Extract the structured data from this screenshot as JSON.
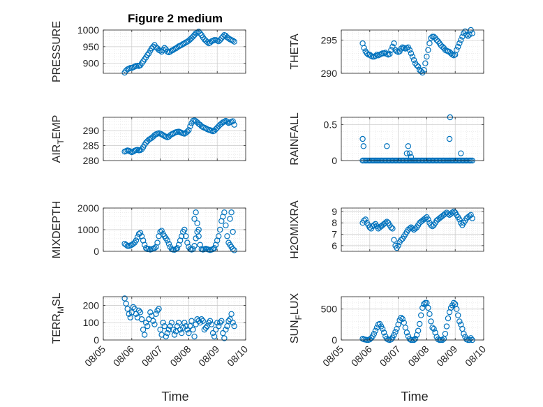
{
  "title": "Figure 2 medium",
  "xlabel": "Time",
  "x_tick_labels": [
    "08/05",
    "08/06",
    "08/07",
    "08/08",
    "08/09",
    "08/10"
  ],
  "x_tick_values": [
    0,
    1,
    2,
    3,
    4,
    5
  ],
  "marker_color": "#0072BD",
  "chart_data": [
    {
      "type": "scatter",
      "id": "pressure",
      "ylabel": "PRESSURE",
      "ylim": [
        870,
        1000
      ],
      "yticks": [
        900,
        950,
        1000
      ],
      "grid": true,
      "x": [
        0.75,
        0.8,
        0.85,
        0.9,
        0.95,
        1.0,
        1.05,
        1.1,
        1.15,
        1.2,
        1.25,
        1.3,
        1.35,
        1.4,
        1.45,
        1.5,
        1.55,
        1.6,
        1.65,
        1.7,
        1.75,
        1.8,
        1.85,
        1.9,
        1.95,
        2.0,
        2.05,
        2.1,
        2.15,
        2.2,
        2.25,
        2.3,
        2.35,
        2.4,
        2.45,
        2.5,
        2.55,
        2.6,
        2.65,
        2.7,
        2.75,
        2.8,
        2.85,
        2.9,
        2.95,
        3.0,
        3.05,
        3.1,
        3.15,
        3.2,
        3.25,
        3.3,
        3.35,
        3.4,
        3.45,
        3.5,
        3.55,
        3.6,
        3.65,
        3.7,
        3.75,
        3.8,
        3.85,
        3.9,
        3.95,
        4.0,
        4.05,
        4.1,
        4.15,
        4.2,
        4.25,
        4.3,
        4.35,
        4.4,
        4.45,
        4.5,
        4.55,
        4.6
      ],
      "y": [
        872,
        878,
        882,
        884,
        886,
        886,
        888,
        890,
        892,
        893,
        892,
        894,
        900,
        906,
        912,
        918,
        925,
        930,
        938,
        945,
        950,
        955,
        948,
        945,
        940,
        938,
        935,
        940,
        946,
        942,
        935,
        933,
        935,
        938,
        940,
        943,
        945,
        948,
        951,
        953,
        955,
        958,
        960,
        963,
        965,
        968,
        972,
        976,
        980,
        985,
        990,
        992,
        995,
        990,
        985,
        978,
        972,
        968,
        964,
        960,
        962,
        966,
        968,
        970,
        970,
        968,
        966,
        970,
        975,
        980,
        985,
        983,
        978,
        975,
        972,
        970,
        968,
        965
      ]
    },
    {
      "type": "scatter",
      "id": "theta",
      "ylabel": "THETA",
      "ylim": [
        290,
        296.5
      ],
      "yticks": [
        290,
        295
      ],
      "grid": true,
      "x": [
        0.75,
        0.8,
        0.85,
        0.9,
        0.95,
        1.0,
        1.05,
        1.1,
        1.15,
        1.2,
        1.25,
        1.3,
        1.35,
        1.4,
        1.45,
        1.5,
        1.55,
        1.6,
        1.65,
        1.7,
        1.75,
        1.8,
        1.85,
        1.9,
        1.95,
        2.0,
        2.05,
        2.1,
        2.15,
        2.2,
        2.25,
        2.3,
        2.35,
        2.4,
        2.45,
        2.5,
        2.55,
        2.6,
        2.65,
        2.7,
        2.75,
        2.8,
        2.85,
        2.9,
        2.95,
        3.0,
        3.05,
        3.1,
        3.15,
        3.2,
        3.25,
        3.3,
        3.35,
        3.4,
        3.45,
        3.5,
        3.55,
        3.6,
        3.65,
        3.7,
        3.75,
        3.8,
        3.85,
        3.9,
        3.95,
        4.0,
        4.05,
        4.1,
        4.15,
        4.2,
        4.25,
        4.3,
        4.35,
        4.4,
        4.45,
        4.5,
        4.55,
        4.6
      ],
      "y": [
        294.5,
        293.8,
        293.3,
        293.0,
        292.8,
        292.8,
        292.6,
        292.5,
        292.5,
        292.6,
        292.8,
        292.7,
        292.8,
        292.9,
        293.0,
        293.0,
        293.1,
        292.9,
        292.8,
        292.9,
        293.5,
        294.0,
        294.5,
        293.5,
        293.3,
        293.2,
        293.3,
        293.7,
        293.9,
        293.8,
        293.7,
        293.8,
        293.9,
        293.5,
        293.0,
        292.5,
        292.0,
        291.5,
        291.2,
        291.0,
        290.5,
        290.3,
        290.1,
        290.5,
        291.5,
        292.5,
        293.5,
        294.5,
        295.3,
        295.5,
        295.5,
        295.3,
        295.0,
        294.8,
        294.5,
        294.2,
        294.0,
        293.8,
        293.5,
        293.4,
        293.3,
        293.2,
        293.0,
        292.8,
        292.7,
        292.8,
        293.5,
        294.0,
        294.5,
        295.0,
        295.5,
        296.0,
        296.3,
        295.8,
        295.6,
        295.8,
        296.5,
        296.0
      ]
    },
    {
      "type": "scatter",
      "id": "air_temp",
      "ylabel_main": "AIR",
      "ylabel_sub": "T",
      "ylabel_rest": "EMP",
      "ylim": [
        280,
        294.5
      ],
      "yticks": [
        280,
        285,
        290
      ],
      "grid": true,
      "x": [
        0.75,
        0.8,
        0.85,
        0.9,
        0.95,
        1.0,
        1.05,
        1.1,
        1.15,
        1.2,
        1.25,
        1.3,
        1.35,
        1.4,
        1.45,
        1.5,
        1.55,
        1.6,
        1.65,
        1.7,
        1.75,
        1.8,
        1.85,
        1.9,
        1.95,
        2.0,
        2.05,
        2.1,
        2.15,
        2.2,
        2.25,
        2.3,
        2.35,
        2.4,
        2.45,
        2.5,
        2.55,
        2.6,
        2.65,
        2.7,
        2.75,
        2.8,
        2.85,
        2.9,
        2.95,
        3.0,
        3.05,
        3.1,
        3.15,
        3.2,
        3.25,
        3.3,
        3.35,
        3.4,
        3.45,
        3.5,
        3.55,
        3.6,
        3.65,
        3.7,
        3.75,
        3.8,
        3.85,
        3.9,
        3.95,
        4.0,
        4.05,
        4.1,
        4.15,
        4.2,
        4.25,
        4.3,
        4.35,
        4.4,
        4.45,
        4.5,
        4.55,
        4.6
      ],
      "y": [
        283.0,
        283.2,
        283.4,
        283.3,
        283.0,
        282.8,
        283.0,
        283.3,
        283.5,
        283.6,
        283.4,
        283.5,
        283.8,
        284.5,
        285.3,
        286.0,
        286.5,
        287.0,
        287.3,
        287.6,
        288.0,
        288.5,
        288.8,
        289.0,
        289.2,
        289.0,
        288.8,
        288.5,
        288.2,
        288.0,
        287.8,
        288.0,
        288.5,
        288.8,
        289.0,
        289.3,
        289.5,
        289.6,
        289.7,
        289.5,
        289.3,
        289.1,
        289.0,
        289.3,
        289.7,
        290.2,
        291.5,
        292.5,
        293.3,
        293.5,
        293.2,
        292.8,
        292.3,
        292.0,
        291.5,
        291.2,
        291.0,
        290.8,
        290.5,
        290.3,
        290.2,
        290.0,
        289.8,
        290.0,
        290.5,
        291.0,
        291.5,
        292.0,
        292.4,
        292.8,
        293.0,
        293.3,
        293.0,
        292.6,
        292.8,
        293.0,
        293.2,
        292.0
      ]
    },
    {
      "type": "scatter",
      "id": "rainfall",
      "ylabel": "RAINFALL",
      "ylim": [
        0,
        0.6
      ],
      "yticks": [
        0,
        0.5
      ],
      "grid": true,
      "x": [
        0.75,
        0.8,
        0.85,
        0.9,
        0.95,
        1.0,
        1.05,
        1.1,
        1.15,
        1.2,
        1.25,
        1.3,
        1.35,
        1.4,
        1.45,
        1.5,
        1.55,
        1.6,
        1.65,
        1.7,
        1.75,
        1.8,
        1.85,
        1.9,
        1.95,
        2.0,
        2.05,
        2.1,
        2.15,
        2.2,
        2.25,
        2.3,
        2.35,
        2.4,
        2.45,
        2.5,
        2.55,
        2.6,
        2.65,
        2.7,
        2.75,
        2.8,
        2.85,
        2.9,
        2.95,
        3.0,
        3.05,
        3.1,
        3.15,
        3.2,
        3.25,
        3.3,
        3.35,
        3.4,
        3.45,
        3.5,
        3.55,
        3.6,
        3.65,
        3.7,
        3.75,
        3.8,
        3.85,
        3.9,
        3.95,
        4.0,
        4.05,
        4.1,
        4.15,
        4.2,
        4.25,
        4.3,
        4.35,
        4.4,
        4.45,
        4.5,
        4.55,
        4.6,
        0.75,
        0.78,
        1.6,
        2.3,
        2.35,
        2.4,
        2.45,
        3.8,
        3.82,
        4.2
      ],
      "y": [
        0,
        0,
        0,
        0,
        0,
        0,
        0,
        0,
        0,
        0,
        0,
        0,
        0,
        0,
        0,
        0,
        0,
        0,
        0,
        0,
        0,
        0,
        0,
        0,
        0,
        0,
        0,
        0,
        0,
        0,
        0,
        0,
        0,
        0,
        0,
        0,
        0,
        0,
        0,
        0,
        0,
        0,
        0,
        0,
        0,
        0,
        0,
        0,
        0,
        0,
        0,
        0,
        0,
        0,
        0,
        0,
        0,
        0,
        0,
        0,
        0,
        0,
        0,
        0,
        0,
        0,
        0,
        0,
        0,
        0,
        0,
        0,
        0,
        0,
        0,
        0,
        0,
        0,
        0.3,
        0.2,
        0.2,
        0.1,
        0.2,
        0.1,
        0.05,
        0.3,
        0.6,
        0.1
      ]
    },
    {
      "type": "scatter",
      "id": "mixdepth",
      "ylabel": "MIXDEPTH",
      "ylim": [
        0,
        2000
      ],
      "yticks": [
        0,
        1000,
        2000
      ],
      "grid": true,
      "x": [
        0.75,
        0.8,
        0.85,
        0.9,
        0.95,
        1.0,
        1.05,
        1.1,
        1.15,
        1.2,
        1.25,
        1.3,
        1.35,
        1.4,
        1.45,
        1.5,
        1.55,
        1.6,
        1.65,
        1.7,
        1.75,
        1.8,
        1.85,
        1.9,
        1.95,
        2.0,
        2.05,
        2.1,
        2.15,
        2.2,
        2.25,
        2.3,
        2.35,
        2.4,
        2.45,
        2.5,
        2.55,
        2.6,
        2.65,
        2.7,
        2.75,
        2.8,
        2.85,
        2.9,
        2.95,
        3.0,
        3.05,
        3.1,
        3.15,
        3.2,
        3.25,
        3.3,
        3.35,
        3.4,
        3.45,
        3.5,
        3.55,
        3.6,
        3.65,
        3.7,
        3.75,
        3.8,
        3.85,
        3.9,
        3.95,
        4.0,
        4.05,
        4.1,
        4.15,
        4.2,
        4.25,
        4.3,
        4.35,
        4.4,
        4.45,
        4.5,
        4.55,
        4.6,
        3.2,
        3.25,
        3.3,
        3.35,
        4.45,
        4.5,
        4.55
      ],
      "y": [
        350,
        300,
        250,
        250,
        270,
        300,
        350,
        400,
        500,
        650,
        800,
        850,
        700,
        500,
        300,
        150,
        100,
        120,
        80,
        100,
        120,
        150,
        200,
        400,
        700,
        900,
        950,
        800,
        700,
        600,
        500,
        350,
        200,
        100,
        80,
        70,
        100,
        150,
        300,
        500,
        700,
        900,
        1000,
        700,
        400,
        200,
        100,
        80,
        100,
        250,
        600,
        900,
        700,
        300,
        100,
        80,
        100,
        120,
        100,
        80,
        60,
        80,
        100,
        150,
        300,
        500,
        700,
        1000,
        1400,
        1600,
        1800,
        1200,
        700,
        400,
        300,
        200,
        100,
        50,
        1500,
        1800,
        1300,
        1000,
        1500,
        1800,
        900
      ]
    },
    {
      "type": "scatter",
      "id": "h2omixra",
      "ylabel": "H2OMIXRA",
      "ylim": [
        5.5,
        9.3
      ],
      "yticks": [
        6,
        7,
        8,
        9
      ],
      "grid": true,
      "x": [
        0.75,
        0.8,
        0.85,
        0.9,
        0.95,
        1.0,
        1.05,
        1.1,
        1.15,
        1.2,
        1.25,
        1.3,
        1.35,
        1.4,
        1.45,
        1.5,
        1.55,
        1.6,
        1.65,
        1.7,
        1.75,
        1.8,
        1.85,
        1.9,
        1.95,
        2.0,
        2.05,
        2.1,
        2.15,
        2.2,
        2.25,
        2.3,
        2.35,
        2.4,
        2.45,
        2.5,
        2.55,
        2.6,
        2.65,
        2.7,
        2.75,
        2.8,
        2.85,
        2.9,
        2.95,
        3.0,
        3.05,
        3.1,
        3.15,
        3.2,
        3.25,
        3.3,
        3.35,
        3.4,
        3.45,
        3.5,
        3.55,
        3.6,
        3.65,
        3.7,
        3.75,
        3.8,
        3.85,
        3.9,
        3.95,
        4.0,
        4.05,
        4.1,
        4.15,
        4.2,
        4.25,
        4.3,
        4.35,
        4.4,
        4.45,
        4.5,
        4.55,
        4.6
      ],
      "y": [
        8.0,
        8.2,
        8.3,
        8.0,
        7.8,
        7.6,
        7.5,
        7.7,
        7.8,
        7.9,
        7.7,
        7.5,
        7.6,
        7.7,
        7.8,
        7.9,
        8.0,
        8.1,
        8.0,
        7.8,
        7.6,
        7.5,
        6.5,
        6.0,
        5.8,
        6.0,
        6.3,
        6.5,
        6.6,
        6.8,
        7.0,
        7.2,
        7.4,
        7.5,
        7.6,
        7.5,
        7.4,
        7.5,
        7.6,
        7.8,
        8.0,
        8.1,
        8.2,
        8.3,
        8.4,
        8.5,
        8.3,
        8.0,
        7.8,
        7.7,
        7.8,
        8.0,
        8.2,
        8.3,
        8.4,
        8.5,
        8.6,
        8.7,
        8.8,
        8.9,
        8.8,
        8.7,
        8.8,
        8.9,
        9.0,
        8.9,
        8.7,
        8.5,
        8.3,
        8.0,
        7.8,
        8.0,
        8.2,
        8.4,
        8.5,
        8.6,
        8.7,
        8.4
      ]
    },
    {
      "type": "scatter",
      "id": "terr_msl",
      "ylabel_main": "TERR",
      "ylabel_sub": "M",
      "ylabel_rest": "SL",
      "ylim": [
        0,
        250
      ],
      "yticks": [
        0,
        100,
        200
      ],
      "grid": true,
      "x": [
        0.75,
        0.8,
        0.85,
        0.9,
        0.95,
        1.0,
        1.05,
        1.1,
        1.15,
        1.2,
        1.25,
        1.3,
        1.35,
        1.4,
        1.45,
        1.5,
        1.55,
        1.6,
        1.65,
        1.7,
        1.75,
        1.8,
        1.85,
        1.9,
        1.95,
        2.0,
        2.05,
        2.1,
        2.15,
        2.2,
        2.25,
        2.3,
        2.35,
        2.4,
        2.45,
        2.5,
        2.55,
        2.6,
        2.65,
        2.7,
        2.75,
        2.8,
        2.85,
        2.9,
        2.95,
        3.0,
        3.05,
        3.1,
        3.15,
        3.2,
        3.25,
        3.3,
        3.35,
        3.4,
        3.45,
        3.5,
        3.55,
        3.6,
        3.65,
        3.7,
        3.75,
        3.8,
        3.85,
        3.9,
        3.95,
        4.0,
        4.05,
        4.1,
        4.15,
        4.2,
        4.25,
        4.3,
        4.35,
        4.4,
        4.45,
        4.5,
        4.55,
        4.6
      ],
      "y": [
        240,
        210,
        180,
        150,
        130,
        160,
        190,
        180,
        150,
        130,
        170,
        160,
        120,
        60,
        30,
        100,
        80,
        120,
        160,
        140,
        110,
        90,
        150,
        170,
        180,
        60,
        30,
        100,
        80,
        20,
        40,
        60,
        80,
        100,
        60,
        30,
        50,
        80,
        100,
        60,
        40,
        70,
        100,
        80,
        60,
        40,
        80,
        110,
        60,
        20,
        90,
        120,
        110,
        100,
        120,
        110,
        60,
        70,
        80,
        100,
        110,
        90,
        40,
        20,
        60,
        100,
        80,
        100,
        110,
        40,
        10,
        60,
        80,
        110,
        120,
        150,
        100,
        80
      ]
    },
    {
      "type": "scatter",
      "id": "sun_flux",
      "ylabel_main": "SUN",
      "ylabel_sub": "F",
      "ylabel_rest": "LUX",
      "ylim": [
        0,
        700
      ],
      "yticks": [
        0,
        500
      ],
      "grid": true,
      "x": [
        0.75,
        0.8,
        0.85,
        0.9,
        0.95,
        1.0,
        1.05,
        1.1,
        1.15,
        1.2,
        1.25,
        1.3,
        1.35,
        1.4,
        1.45,
        1.5,
        1.55,
        1.6,
        1.65,
        1.7,
        1.75,
        1.8,
        1.85,
        1.9,
        1.95,
        2.0,
        2.05,
        2.1,
        2.15,
        2.2,
        2.25,
        2.3,
        2.35,
        2.4,
        2.45,
        2.5,
        2.55,
        2.6,
        2.65,
        2.7,
        2.75,
        2.8,
        2.85,
        2.9,
        2.95,
        3.0,
        3.05,
        3.1,
        3.15,
        3.2,
        3.25,
        3.3,
        3.35,
        3.4,
        3.45,
        3.5,
        3.55,
        3.6,
        3.65,
        3.7,
        3.75,
        3.8,
        3.85,
        3.9,
        3.95,
        4.0,
        4.05,
        4.1,
        4.15,
        4.2,
        4.25,
        4.3,
        4.35,
        4.4,
        4.45,
        4.5,
        4.55,
        4.6
      ],
      "y": [
        20,
        10,
        5,
        0,
        0,
        10,
        30,
        60,
        100,
        150,
        200,
        250,
        260,
        220,
        180,
        120,
        60,
        20,
        5,
        0,
        10,
        40,
        80,
        130,
        180,
        250,
        320,
        360,
        340,
        280,
        200,
        120,
        60,
        15,
        0,
        0,
        0,
        20,
        80,
        150,
        260,
        400,
        520,
        580,
        600,
        600,
        520,
        420,
        300,
        200,
        180,
        120,
        50,
        10,
        0,
        0,
        0,
        20,
        100,
        220,
        350,
        450,
        520,
        560,
        600,
        580,
        500,
        400,
        300,
        250,
        180,
        100,
        50,
        10,
        0,
        0,
        30,
        0
      ]
    }
  ]
}
